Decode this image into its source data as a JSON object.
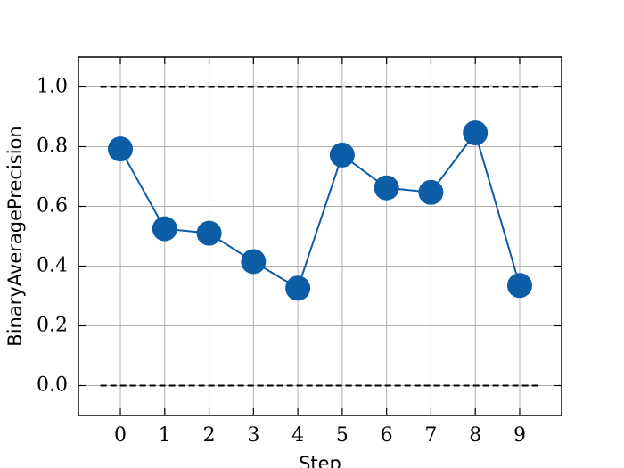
{
  "chart_data": {
    "type": "line",
    "xlabel": "Step",
    "ylabel": "BinaryAveragePrecision",
    "x": [
      0,
      1,
      2,
      3,
      4,
      5,
      6,
      7,
      8,
      9
    ],
    "series": [
      {
        "name": "BinaryAveragePrecision",
        "color": "#0c5da5",
        "values": [
          0.792,
          0.525,
          0.51,
          0.415,
          0.326,
          0.772,
          0.662,
          0.647,
          0.846,
          0.335
        ]
      }
    ],
    "hlines": {
      "values": [
        0,
        1
      ],
      "xmin": -0.45,
      "xmax": 9.45,
      "color": "#000000",
      "style": "dashed"
    },
    "xlim": [
      -0.945,
      9.945
    ],
    "xticks": [
      0,
      1,
      2,
      3,
      4,
      5,
      6,
      7,
      8,
      9
    ],
    "ylim": [
      -0.1,
      1.1
    ],
    "yticks": [
      {
        "value": 0,
        "label": "0.0"
      },
      {
        "value": 0.2,
        "label": "0.2"
      },
      {
        "value": 0.4,
        "label": "0.4"
      },
      {
        "value": 0.6,
        "label": "0.6"
      },
      {
        "value": 0.8,
        "label": "0.8"
      },
      {
        "value": 1,
        "label": "1.0"
      }
    ],
    "grid": true
  }
}
